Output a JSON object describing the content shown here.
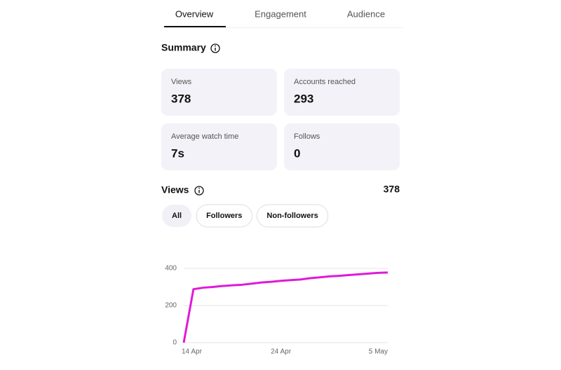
{
  "tabs": [
    "Overview",
    "Engagement",
    "Audience"
  ],
  "active_tab": 0,
  "summary": {
    "title": "Summary",
    "cards": [
      {
        "label": "Views",
        "value": "378"
      },
      {
        "label": "Accounts reached",
        "value": "293"
      },
      {
        "label": "Average watch time",
        "value": "7s"
      },
      {
        "label": "Follows",
        "value": "0"
      }
    ]
  },
  "views": {
    "title": "Views",
    "total": "378",
    "filters": [
      "All",
      "Followers",
      "Non-followers"
    ],
    "active_filter": 0
  },
  "chart_data": {
    "type": "line",
    "x": [
      "14 Apr",
      "15 Apr",
      "16 Apr",
      "17 Apr",
      "18 Apr",
      "19 Apr",
      "20 Apr",
      "21 Apr",
      "22 Apr",
      "23 Apr",
      "24 Apr",
      "25 Apr",
      "26 Apr",
      "27 Apr",
      "28 Apr",
      "29 Apr",
      "30 Apr",
      "1 May",
      "2 May",
      "3 May",
      "4 May",
      "5 May"
    ],
    "series": [
      {
        "color": "#e01ad6",
        "values": [
          0,
          288,
          296,
          300,
          305,
          309,
          312,
          318,
          324,
          328,
          333,
          337,
          340,
          347,
          352,
          357,
          360,
          364,
          368,
          372,
          376,
          378
        ]
      }
    ],
    "xticks": [
      "14 Apr",
      "24 Apr",
      "5 May"
    ],
    "ylim": [
      0,
      400
    ],
    "yticks": [
      0,
      200,
      400
    ],
    "grid": true
  }
}
